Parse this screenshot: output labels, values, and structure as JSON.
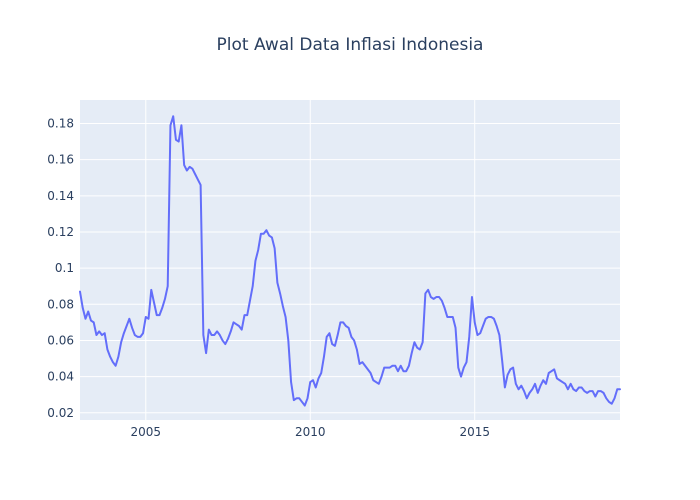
{
  "chart_data": {
    "type": "line",
    "title": "Plot Awal Data Inflasi Indonesia",
    "xlabel": "",
    "ylabel": "",
    "colors": {
      "plot_bg": "#e5ecf6",
      "paper_bg": "#ffffff",
      "line": "#636efa",
      "text": "#2a3f5f"
    },
    "grid": true,
    "xlim": [
      "2003-01",
      "2019-06"
    ],
    "ylim": [
      0.016,
      0.193
    ],
    "x_ticks": [
      {
        "x": "2005-01",
        "label": "2005"
      },
      {
        "x": "2010-01",
        "label": "2010"
      },
      {
        "x": "2015-01",
        "label": "2015"
      }
    ],
    "y_ticks": [
      {
        "y": 0.02,
        "label": "0.02"
      },
      {
        "y": 0.04,
        "label": "0.04"
      },
      {
        "y": 0.06,
        "label": "0.06"
      },
      {
        "y": 0.08,
        "label": "0.08"
      },
      {
        "y": 0.1,
        "label": "0.1"
      },
      {
        "y": 0.12,
        "label": "0.12"
      },
      {
        "y": 0.14,
        "label": "0.14"
      },
      {
        "y": 0.16,
        "label": "0.16"
      },
      {
        "y": 0.18,
        "label": "0.18"
      }
    ],
    "series": [
      {
        "points": [
          [
            "2003-01",
            0.087
          ],
          [
            "2003-02",
            0.078
          ],
          [
            "2003-03",
            0.072
          ],
          [
            "2003-04",
            0.076
          ],
          [
            "2003-05",
            0.071
          ],
          [
            "2003-06",
            0.07
          ],
          [
            "2003-07",
            0.063
          ],
          [
            "2003-08",
            0.065
          ],
          [
            "2003-09",
            0.063
          ],
          [
            "2003-10",
            0.064
          ],
          [
            "2003-11",
            0.055
          ],
          [
            "2003-12",
            0.051
          ],
          [
            "2004-01",
            0.048
          ],
          [
            "2004-02",
            0.046
          ],
          [
            "2004-03",
            0.051
          ],
          [
            "2004-04",
            0.059
          ],
          [
            "2004-05",
            0.064
          ],
          [
            "2004-06",
            0.068
          ],
          [
            "2004-07",
            0.072
          ],
          [
            "2004-08",
            0.067
          ],
          [
            "2004-09",
            0.063
          ],
          [
            "2004-10",
            0.062
          ],
          [
            "2004-11",
            0.062
          ],
          [
            "2004-12",
            0.064
          ],
          [
            "2005-01",
            0.073
          ],
          [
            "2005-02",
            0.072
          ],
          [
            "2005-03",
            0.088
          ],
          [
            "2005-04",
            0.081
          ],
          [
            "2005-05",
            0.074
          ],
          [
            "2005-06",
            0.074
          ],
          [
            "2005-07",
            0.078
          ],
          [
            "2005-08",
            0.083
          ],
          [
            "2005-09",
            0.09
          ],
          [
            "2005-10",
            0.179
          ],
          [
            "2005-11",
            0.184
          ],
          [
            "2005-12",
            0.171
          ],
          [
            "2006-01",
            0.17
          ],
          [
            "2006-02",
            0.179
          ],
          [
            "2006-03",
            0.157
          ],
          [
            "2006-04",
            0.154
          ],
          [
            "2006-05",
            0.156
          ],
          [
            "2006-06",
            0.155
          ],
          [
            "2006-07",
            0.152
          ],
          [
            "2006-08",
            0.149
          ],
          [
            "2006-09",
            0.146
          ],
          [
            "2006-10",
            0.063
          ],
          [
            "2006-11",
            0.053
          ],
          [
            "2006-12",
            0.066
          ],
          [
            "2007-01",
            0.063
          ],
          [
            "2007-02",
            0.063
          ],
          [
            "2007-03",
            0.065
          ],
          [
            "2007-04",
            0.063
          ],
          [
            "2007-05",
            0.06
          ],
          [
            "2007-06",
            0.058
          ],
          [
            "2007-07",
            0.061
          ],
          [
            "2007-08",
            0.065
          ],
          [
            "2007-09",
            0.07
          ],
          [
            "2007-10",
            0.069
          ],
          [
            "2007-11",
            0.068
          ],
          [
            "2007-12",
            0.066
          ],
          [
            "2008-01",
            0.074
          ],
          [
            "2008-02",
            0.074
          ],
          [
            "2008-03",
            0.082
          ],
          [
            "2008-04",
            0.09
          ],
          [
            "2008-05",
            0.104
          ],
          [
            "2008-06",
            0.11
          ],
          [
            "2008-07",
            0.119
          ],
          [
            "2008-08",
            0.119
          ],
          [
            "2008-09",
            0.121
          ],
          [
            "2008-10",
            0.118
          ],
          [
            "2008-11",
            0.117
          ],
          [
            "2008-12",
            0.111
          ],
          [
            "2009-01",
            0.092
          ],
          [
            "2009-02",
            0.086
          ],
          [
            "2009-03",
            0.079
          ],
          [
            "2009-04",
            0.073
          ],
          [
            "2009-05",
            0.06
          ],
          [
            "2009-06",
            0.037
          ],
          [
            "2009-07",
            0.027
          ],
          [
            "2009-08",
            0.028
          ],
          [
            "2009-09",
            0.028
          ],
          [
            "2009-10",
            0.026
          ],
          [
            "2009-11",
            0.024
          ],
          [
            "2009-12",
            0.028
          ],
          [
            "2010-01",
            0.037
          ],
          [
            "2010-02",
            0.038
          ],
          [
            "2010-03",
            0.034
          ],
          [
            "2010-04",
            0.039
          ],
          [
            "2010-05",
            0.042
          ],
          [
            "2010-06",
            0.051
          ],
          [
            "2010-07",
            0.062
          ],
          [
            "2010-08",
            0.064
          ],
          [
            "2010-09",
            0.058
          ],
          [
            "2010-10",
            0.057
          ],
          [
            "2010-11",
            0.063
          ],
          [
            "2010-12",
            0.07
          ],
          [
            "2011-01",
            0.07
          ],
          [
            "2011-02",
            0.068
          ],
          [
            "2011-03",
            0.067
          ],
          [
            "2011-04",
            0.062
          ],
          [
            "2011-05",
            0.06
          ],
          [
            "2011-06",
            0.055
          ],
          [
            "2011-07",
            0.047
          ],
          [
            "2011-08",
            0.048
          ],
          [
            "2011-09",
            0.046
          ],
          [
            "2011-10",
            0.044
          ],
          [
            "2011-11",
            0.042
          ],
          [
            "2011-12",
            0.038
          ],
          [
            "2012-01",
            0.037
          ],
          [
            "2012-02",
            0.036
          ],
          [
            "2012-03",
            0.04
          ],
          [
            "2012-04",
            0.045
          ],
          [
            "2012-05",
            0.045
          ],
          [
            "2012-06",
            0.045
          ],
          [
            "2012-07",
            0.046
          ],
          [
            "2012-08",
            0.046
          ],
          [
            "2012-09",
            0.043
          ],
          [
            "2012-10",
            0.046
          ],
          [
            "2012-11",
            0.043
          ],
          [
            "2012-12",
            0.043
          ],
          [
            "2013-01",
            0.046
          ],
          [
            "2013-02",
            0.053
          ],
          [
            "2013-03",
            0.059
          ],
          [
            "2013-04",
            0.056
          ],
          [
            "2013-05",
            0.055
          ],
          [
            "2013-06",
            0.059
          ],
          [
            "2013-07",
            0.086
          ],
          [
            "2013-08",
            0.088
          ],
          [
            "2013-09",
            0.084
          ],
          [
            "2013-10",
            0.083
          ],
          [
            "2013-11",
            0.084
          ],
          [
            "2013-12",
            0.084
          ],
          [
            "2014-01",
            0.082
          ],
          [
            "2014-02",
            0.078
          ],
          [
            "2014-03",
            0.073
          ],
          [
            "2014-04",
            0.073
          ],
          [
            "2014-05",
            0.073
          ],
          [
            "2014-06",
            0.067
          ],
          [
            "2014-07",
            0.045
          ],
          [
            "2014-08",
            0.04
          ],
          [
            "2014-09",
            0.045
          ],
          [
            "2014-10",
            0.048
          ],
          [
            "2014-11",
            0.062
          ],
          [
            "2014-12",
            0.084
          ],
          [
            "2015-01",
            0.07
          ],
          [
            "2015-02",
            0.063
          ],
          [
            "2015-03",
            0.064
          ],
          [
            "2015-04",
            0.068
          ],
          [
            "2015-05",
            0.072
          ],
          [
            "2015-06",
            0.073
          ],
          [
            "2015-07",
            0.073
          ],
          [
            "2015-08",
            0.072
          ],
          [
            "2015-09",
            0.068
          ],
          [
            "2015-10",
            0.063
          ],
          [
            "2015-11",
            0.049
          ],
          [
            "2015-12",
            0.034
          ],
          [
            "2016-01",
            0.041
          ],
          [
            "2016-02",
            0.044
          ],
          [
            "2016-03",
            0.045
          ],
          [
            "2016-04",
            0.036
          ],
          [
            "2016-05",
            0.033
          ],
          [
            "2016-06",
            0.035
          ],
          [
            "2016-07",
            0.032
          ],
          [
            "2016-08",
            0.028
          ],
          [
            "2016-09",
            0.031
          ],
          [
            "2016-10",
            0.033
          ],
          [
            "2016-11",
            0.036
          ],
          [
            "2016-12",
            0.031
          ],
          [
            "2017-01",
            0.035
          ],
          [
            "2017-02",
            0.038
          ],
          [
            "2017-03",
            0.036
          ],
          [
            "2017-04",
            0.042
          ],
          [
            "2017-05",
            0.043
          ],
          [
            "2017-06",
            0.044
          ],
          [
            "2017-07",
            0.039
          ],
          [
            "2017-08",
            0.038
          ],
          [
            "2017-09",
            0.037
          ],
          [
            "2017-10",
            0.036
          ],
          [
            "2017-11",
            0.033
          ],
          [
            "2017-12",
            0.036
          ],
          [
            "2018-01",
            0.033
          ],
          [
            "2018-02",
            0.032
          ],
          [
            "2018-03",
            0.034
          ],
          [
            "2018-04",
            0.034
          ],
          [
            "2018-05",
            0.032
          ],
          [
            "2018-06",
            0.031
          ],
          [
            "2018-07",
            0.032
          ],
          [
            "2018-08",
            0.032
          ],
          [
            "2018-09",
            0.029
          ],
          [
            "2018-10",
            0.032
          ],
          [
            "2018-11",
            0.032
          ],
          [
            "2018-12",
            0.031
          ],
          [
            "2019-01",
            0.028
          ],
          [
            "2019-02",
            0.026
          ],
          [
            "2019-03",
            0.025
          ],
          [
            "2019-04",
            0.028
          ],
          [
            "2019-05",
            0.033
          ],
          [
            "2019-06",
            0.033
          ]
        ]
      }
    ]
  }
}
